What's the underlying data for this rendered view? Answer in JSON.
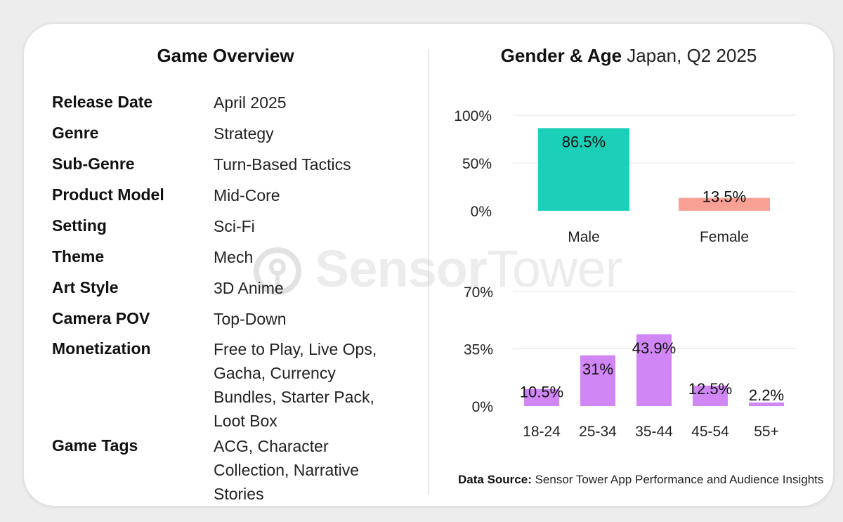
{
  "overview": {
    "title": "Game Overview",
    "rows": [
      {
        "key": "Release Date",
        "value": "April  2025"
      },
      {
        "key": "Genre",
        "value": "Strategy"
      },
      {
        "key": "Sub-Genre",
        "value": "Turn-Based Tactics"
      },
      {
        "key": "Product Model",
        "value": "Mid-Core"
      },
      {
        "key": "Setting",
        "value": "Sci-Fi"
      },
      {
        "key": "Theme",
        "value": "Mech"
      },
      {
        "key": "Art Style",
        "value": "3D Anime"
      },
      {
        "key": "Camera POV",
        "value": "Top-Down"
      },
      {
        "key": "Monetization",
        "value": "Free to Play, Live Ops, Gacha, Currency Bundles, Starter Pack, Loot Box"
      },
      {
        "key": "Game Tags",
        "value": "ACG, Character Collection, Narrative Stories"
      }
    ]
  },
  "watermark": {
    "brand_bold": "Sensor",
    "brand_light": "Tower"
  },
  "demographics": {
    "title_bold": "Gender & Age",
    "title_rest": " Japan, Q2 2025"
  },
  "source": {
    "label": "Data Source:",
    "text": " Sensor Tower App Performance and Audience Insights"
  },
  "chart_data": [
    {
      "type": "bar",
      "categories": [
        "Male",
        "Female"
      ],
      "values": [
        86.5,
        13.5
      ],
      "value_labels": [
        "86.5%",
        "13.5%"
      ],
      "colors": [
        "#1ccfb8",
        "#f8a093"
      ],
      "yticks": [
        "0%",
        "50%",
        "100%"
      ],
      "ylim": [
        0,
        100
      ],
      "grid": true
    },
    {
      "type": "bar",
      "categories": [
        "18-24",
        "25-34",
        "35-44",
        "45-54",
        "55+"
      ],
      "values": [
        10.5,
        31,
        43.9,
        12.5,
        2.2
      ],
      "value_labels": [
        "10.5%",
        "31%",
        "43.9%",
        "12.5%",
        "2.2%"
      ],
      "color": "#d087f5",
      "yticks": [
        "0%",
        "35%",
        "70%"
      ],
      "ylim": [
        0,
        70
      ],
      "grid": true
    }
  ]
}
